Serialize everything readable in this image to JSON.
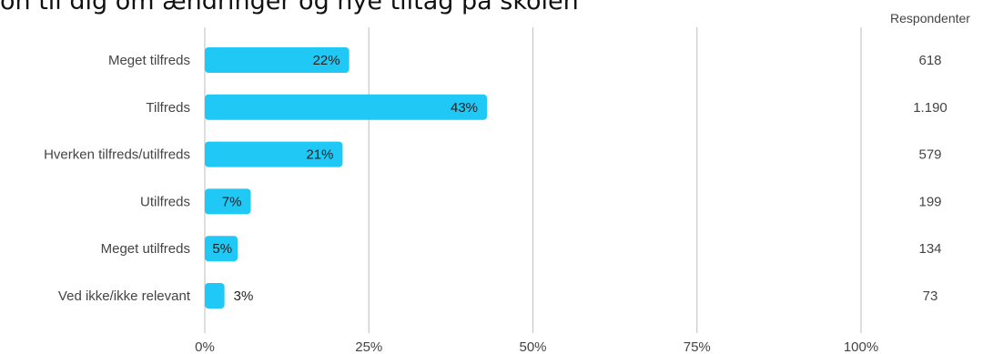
{
  "title_fragment": "on til dig om ændringer og nye tiltag på skolen",
  "respondents_header": "Respondenter",
  "chart_data": {
    "type": "bar",
    "orientation": "horizontal",
    "categories": [
      "Meget tilfreds",
      "Tilfreds",
      "Hverken tilfreds/utilfreds",
      "Utilfreds",
      "Meget utilfreds",
      "Ved ikke/ikke relevant"
    ],
    "values": [
      22,
      43,
      21,
      7,
      5,
      3
    ],
    "value_labels": [
      "22%",
      "43%",
      "21%",
      "7%",
      "5%",
      "3%"
    ],
    "respondents": [
      "618",
      "1.190",
      "579",
      "199",
      "134",
      "73"
    ],
    "xticks": [
      "0%",
      "25%",
      "50%",
      "75%",
      "100%"
    ],
    "xlim": [
      0,
      100
    ],
    "grid": true,
    "bar_color": "#1fc8f5"
  }
}
